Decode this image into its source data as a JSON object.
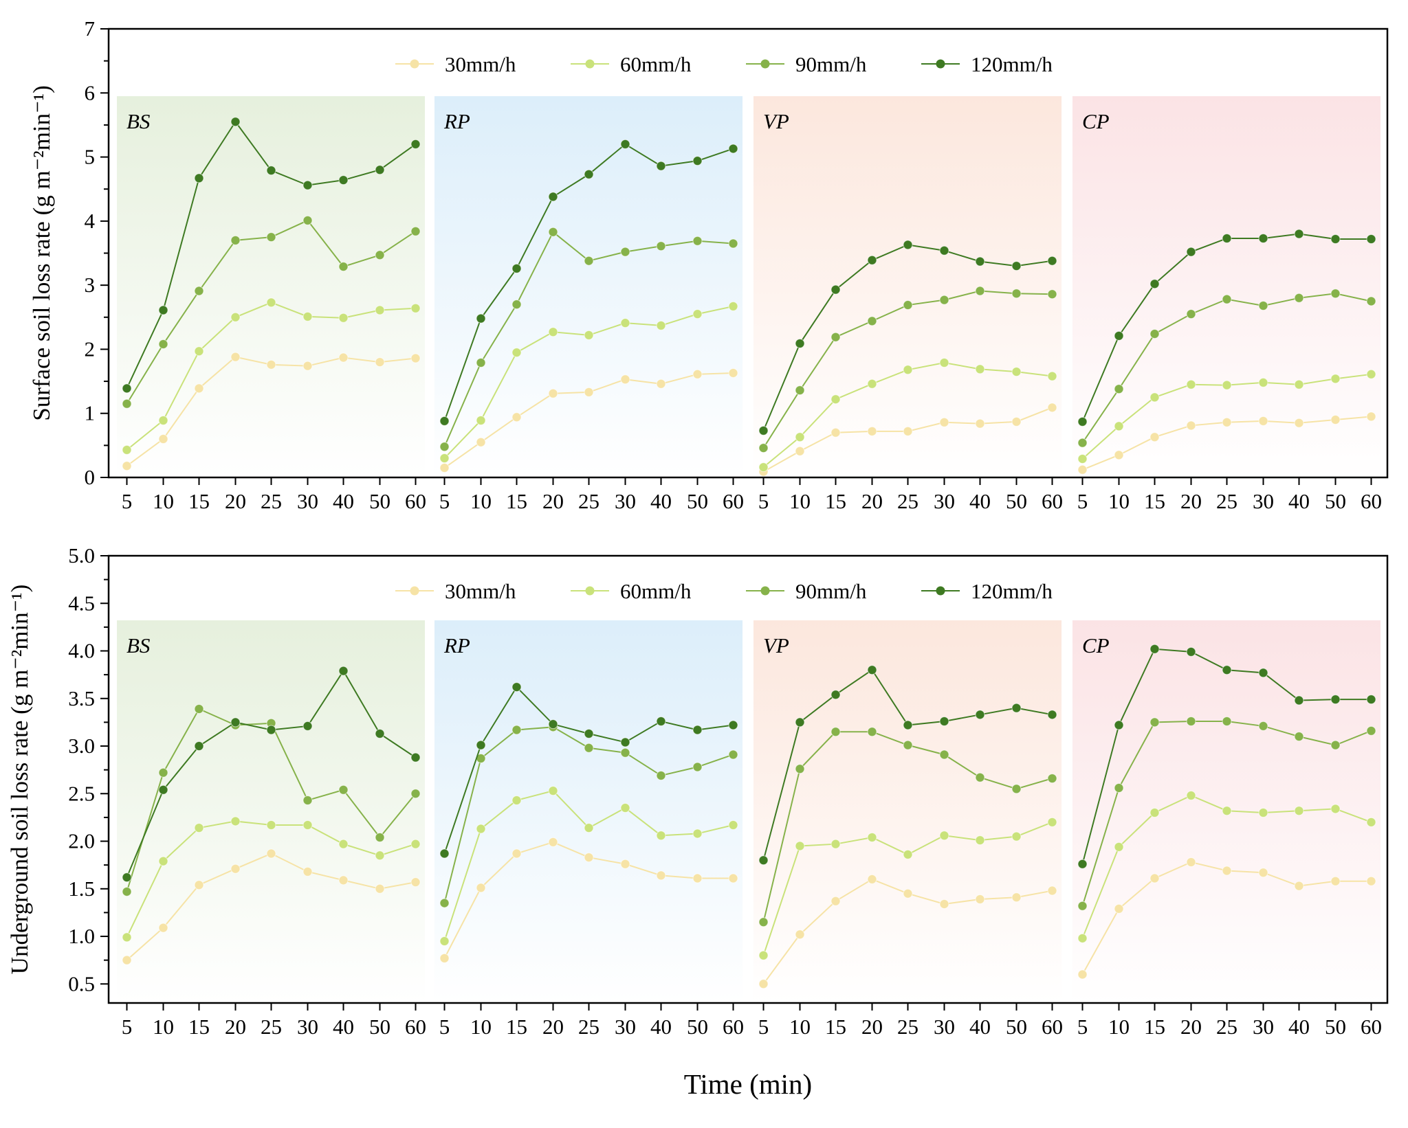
{
  "chart_data": [
    {
      "type": "line",
      "ylabel": "Surface soil loss rate (g m⁻²min⁻¹)",
      "ylim": [
        0,
        7
      ],
      "yticks": [
        "0",
        "1",
        "2",
        "3",
        "4",
        "5",
        "6",
        "7"
      ],
      "x_tick_labels": [
        "5",
        "10",
        "15",
        "20",
        "25",
        "30",
        "40",
        "50",
        "60"
      ],
      "legend": [
        "30mm/h",
        "60mm/h",
        "90mm/h",
        "120mm/h"
      ],
      "legend_placement": "top-center",
      "grid": false,
      "series_colors": [
        "#F6E3A6",
        "#C9E27A",
        "#86B24A",
        "#3E7A22"
      ],
      "panels": [
        {
          "name": "BS",
          "background": "#E6F0DD",
          "series": [
            {
              "name": "30mm/h",
              "values": [
                0.18,
                0.6,
                1.39,
                1.88,
                1.76,
                1.74,
                1.87,
                1.8,
                1.86
              ]
            },
            {
              "name": "60mm/h",
              "values": [
                0.43,
                0.89,
                1.97,
                2.5,
                2.73,
                2.51,
                2.49,
                2.61,
                2.64
              ]
            },
            {
              "name": "90mm/h",
              "values": [
                1.15,
                2.08,
                2.91,
                3.7,
                3.75,
                4.01,
                3.29,
                3.47,
                3.84
              ]
            },
            {
              "name": "120mm/h",
              "values": [
                1.39,
                2.61,
                4.67,
                5.55,
                4.79,
                4.56,
                4.64,
                4.8,
                5.2
              ]
            }
          ]
        },
        {
          "name": "RP",
          "background": "#DCEEFA",
          "series": [
            {
              "name": "30mm/h",
              "values": [
                0.15,
                0.55,
                0.94,
                1.31,
                1.33,
                1.53,
                1.46,
                1.61,
                1.63
              ]
            },
            {
              "name": "60mm/h",
              "values": [
                0.3,
                0.89,
                1.95,
                2.27,
                2.22,
                2.41,
                2.37,
                2.55,
                2.67
              ]
            },
            {
              "name": "90mm/h",
              "values": [
                0.48,
                1.79,
                2.7,
                3.83,
                3.38,
                3.52,
                3.61,
                3.69,
                3.65
              ]
            },
            {
              "name": "120mm/h",
              "values": [
                0.88,
                2.48,
                3.26,
                4.38,
                4.73,
                5.2,
                4.86,
                4.94,
                5.13
              ]
            }
          ]
        },
        {
          "name": "VP",
          "background": "#FCE7DD",
          "series": [
            {
              "name": "30mm/h",
              "values": [
                0.09,
                0.41,
                0.7,
                0.72,
                0.72,
                0.86,
                0.84,
                0.87,
                1.09
              ]
            },
            {
              "name": "60mm/h",
              "values": [
                0.16,
                0.63,
                1.22,
                1.46,
                1.68,
                1.79,
                1.69,
                1.65,
                1.58
              ]
            },
            {
              "name": "90mm/h",
              "values": [
                0.46,
                1.36,
                2.19,
                2.44,
                2.69,
                2.77,
                2.91,
                2.87,
                2.86
              ]
            },
            {
              "name": "120mm/h",
              "values": [
                0.73,
                2.09,
                2.93,
                3.39,
                3.63,
                3.54,
                3.37,
                3.3,
                3.38
              ]
            }
          ]
        },
        {
          "name": "CP",
          "background": "#FBE3E5",
          "series": [
            {
              "name": "30mm/h",
              "values": [
                0.12,
                0.35,
                0.63,
                0.81,
                0.86,
                0.88,
                0.85,
                0.9,
                0.95
              ]
            },
            {
              "name": "60mm/h",
              "values": [
                0.29,
                0.8,
                1.25,
                1.45,
                1.44,
                1.48,
                1.45,
                1.54,
                1.61
              ]
            },
            {
              "name": "90mm/h",
              "values": [
                0.54,
                1.38,
                2.24,
                2.55,
                2.78,
                2.68,
                2.8,
                2.87,
                2.75
              ]
            },
            {
              "name": "120mm/h",
              "values": [
                0.87,
                2.21,
                3.02,
                3.52,
                3.73,
                3.73,
                3.8,
                3.72,
                3.72
              ]
            }
          ]
        }
      ]
    },
    {
      "type": "line",
      "ylabel": "Underground soil loss rate (g m⁻²min⁻¹)",
      "xlabel": "Time (min)",
      "ylim": [
        0.3,
        5.0
      ],
      "yticks": [
        "0.5",
        "1.0",
        "1.5",
        "2.0",
        "2.5",
        "3.0",
        "3.5",
        "4.0",
        "4.5",
        "5.0"
      ],
      "x_tick_labels": [
        "5",
        "10",
        "15",
        "20",
        "25",
        "30",
        "40",
        "50",
        "60"
      ],
      "legend": [
        "30mm/h",
        "60mm/h",
        "90mm/h",
        "120mm/h"
      ],
      "legend_placement": "top-center",
      "grid": false,
      "series_colors": [
        "#F6E3A6",
        "#C9E27A",
        "#86B24A",
        "#3E7A22"
      ],
      "panels": [
        {
          "name": "BS",
          "background": "#E6F0DD",
          "series": [
            {
              "name": "30mm/h",
              "values": [
                0.75,
                1.09,
                1.54,
                1.71,
                1.87,
                1.68,
                1.59,
                1.5,
                1.57
              ]
            },
            {
              "name": "60mm/h",
              "values": [
                0.99,
                1.79,
                2.14,
                2.21,
                2.17,
                2.17,
                1.97,
                1.85,
                1.97
              ]
            },
            {
              "name": "90mm/h",
              "values": [
                1.47,
                2.72,
                3.39,
                3.22,
                3.24,
                2.43,
                2.54,
                2.04,
                2.5
              ]
            },
            {
              "name": "120mm/h",
              "values": [
                1.62,
                2.54,
                3.0,
                3.25,
                3.17,
                3.21,
                3.79,
                3.13,
                2.88
              ]
            }
          ]
        },
        {
          "name": "RP",
          "background": "#DCEEFA",
          "series": [
            {
              "name": "30mm/h",
              "values": [
                0.77,
                1.51,
                1.87,
                1.99,
                1.83,
                1.76,
                1.64,
                1.61,
                1.61
              ]
            },
            {
              "name": "60mm/h",
              "values": [
                0.95,
                2.13,
                2.43,
                2.53,
                2.14,
                2.35,
                2.06,
                2.08,
                2.17
              ]
            },
            {
              "name": "90mm/h",
              "values": [
                1.35,
                2.87,
                3.17,
                3.2,
                2.98,
                2.93,
                2.69,
                2.78,
                2.91
              ]
            },
            {
              "name": "120mm/h",
              "values": [
                1.87,
                3.01,
                3.62,
                3.23,
                3.13,
                3.04,
                3.26,
                3.17,
                3.22
              ]
            }
          ]
        },
        {
          "name": "VP",
          "background": "#FCE7DD",
          "series": [
            {
              "name": "30mm/h",
              "values": [
                0.5,
                1.02,
                1.37,
                1.6,
                1.45,
                1.34,
                1.39,
                1.41,
                1.48
              ]
            },
            {
              "name": "60mm/h",
              "values": [
                0.8,
                1.95,
                1.97,
                2.04,
                1.86,
                2.06,
                2.01,
                2.05,
                2.2
              ]
            },
            {
              "name": "90mm/h",
              "values": [
                1.15,
                2.76,
                3.15,
                3.15,
                3.01,
                2.91,
                2.67,
                2.55,
                2.66
              ]
            },
            {
              "name": "120mm/h",
              "values": [
                1.8,
                3.25,
                3.54,
                3.8,
                3.22,
                3.26,
                3.33,
                3.4,
                3.33
              ]
            }
          ]
        },
        {
          "name": "CP",
          "background": "#FBE3E5",
          "series": [
            {
              "name": "30mm/h",
              "values": [
                0.6,
                1.29,
                1.61,
                1.78,
                1.69,
                1.67,
                1.53,
                1.58,
                1.58
              ]
            },
            {
              "name": "60mm/h",
              "values": [
                0.98,
                1.94,
                2.3,
                2.48,
                2.32,
                2.3,
                2.32,
                2.34,
                2.2
              ]
            },
            {
              "name": "90mm/h",
              "values": [
                1.32,
                2.56,
                3.25,
                3.26,
                3.26,
                3.21,
                3.1,
                3.01,
                3.16
              ]
            },
            {
              "name": "120mm/h",
              "values": [
                1.76,
                3.22,
                4.02,
                3.99,
                3.8,
                3.77,
                3.48,
                3.49,
                3.49
              ]
            }
          ]
        }
      ]
    }
  ]
}
